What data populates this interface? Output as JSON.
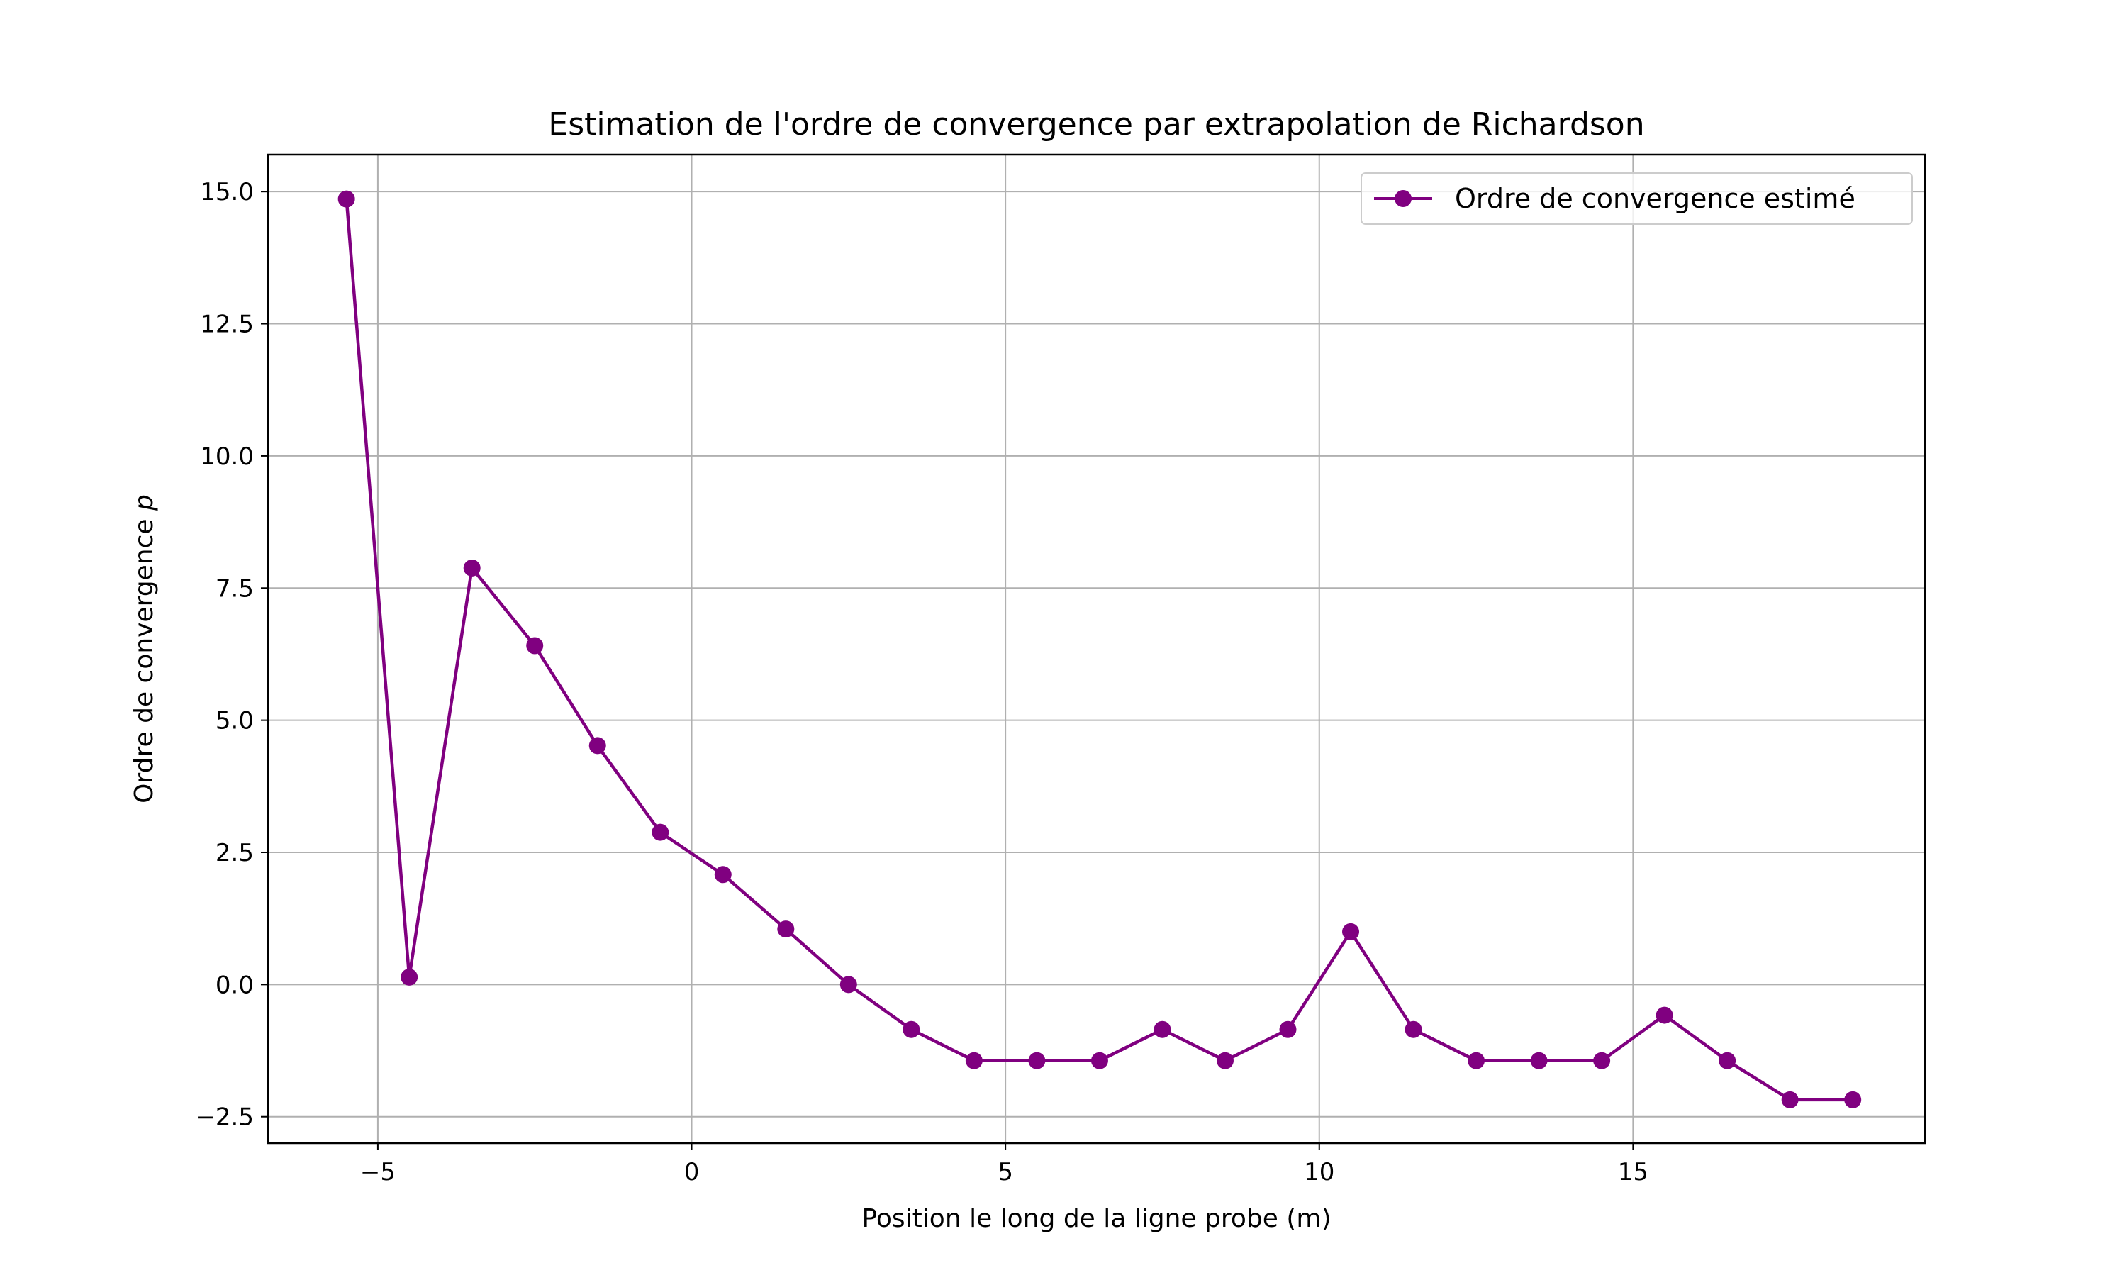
{
  "chart_data": {
    "type": "line",
    "title": "Estimation de l'ordre de convergence par extrapolation de Richardson",
    "xlabel": "Position le long de la ligne probe (m)",
    "ylabel_main": "Ordre de convergence ",
    "ylabel_symbol": "p",
    "xlim": [
      -6.75,
      19.65
    ],
    "ylim": [
      -3.0,
      15.7
    ],
    "xticks": [
      -5,
      0,
      5,
      10,
      15
    ],
    "xtick_labels": [
      "−5",
      "0",
      "5",
      "10",
      "15"
    ],
    "yticks": [
      -2.5,
      0.0,
      2.5,
      5.0,
      7.5,
      10.0,
      12.5,
      15.0
    ],
    "ytick_labels": [
      "−2.5",
      "0.0",
      "2.5",
      "5.0",
      "7.5",
      "10.0",
      "12.5",
      "15.0"
    ],
    "grid": true,
    "legend_position": "upper right",
    "series": [
      {
        "name": "Ordre de convergence estimé",
        "color": "#800080",
        "marker": "circle",
        "x": [
          -5.5,
          -4.5,
          -3.5,
          -2.5,
          -1.5,
          -0.5,
          0.5,
          1.5,
          2.5,
          3.5,
          4.5,
          5.5,
          6.5,
          7.5,
          8.5,
          9.5,
          10.5,
          11.5,
          12.5,
          13.5,
          14.5,
          15.5,
          16.5,
          17.5,
          18.5
        ],
        "y": [
          14.86,
          0.14,
          7.88,
          6.41,
          4.52,
          2.88,
          2.08,
          1.05,
          0.0,
          -0.85,
          -1.44,
          -1.44,
          -1.44,
          -0.85,
          -1.44,
          -0.85,
          1.0,
          -0.85,
          -1.44,
          -1.44,
          -1.44,
          -0.58,
          -1.44,
          -2.18,
          -2.18
        ]
      }
    ]
  }
}
